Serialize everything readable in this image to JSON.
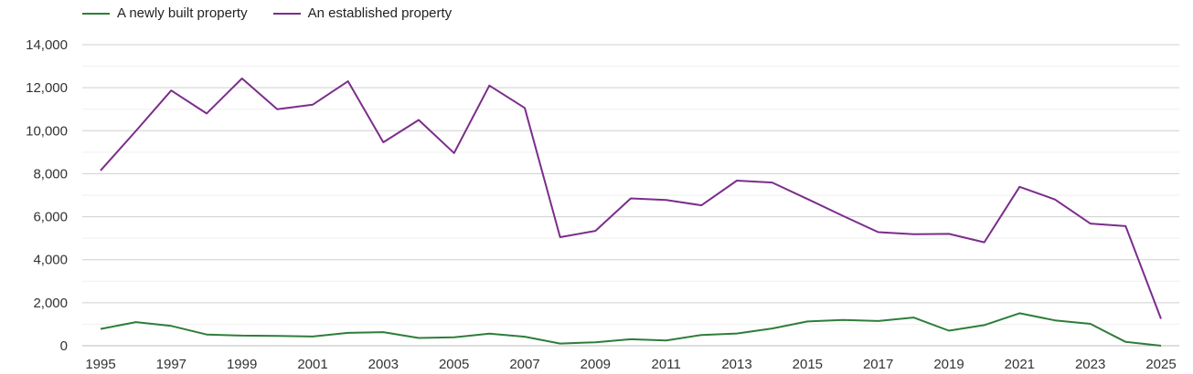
{
  "chart_data": {
    "type": "line",
    "x": [
      1995,
      1996,
      1997,
      1998,
      1999,
      2000,
      2001,
      2002,
      2003,
      2004,
      2005,
      2006,
      2007,
      2008,
      2009,
      2010,
      2011,
      2012,
      2013,
      2014,
      2015,
      2016,
      2017,
      2018,
      2019,
      2020,
      2021,
      2022,
      2023,
      2024,
      2025
    ],
    "x_tick_labels": [
      "1995",
      "1997",
      "1999",
      "2001",
      "2003",
      "2005",
      "2007",
      "2009",
      "2011",
      "2013",
      "2015",
      "2017",
      "2019",
      "2021",
      "2023",
      "2025"
    ],
    "y_tick_labels": [
      "0",
      "2,000",
      "4,000",
      "6,000",
      "8,000",
      "10,000",
      "12,000",
      "14,000"
    ],
    "ylim": [
      0,
      14000
    ],
    "grid": true,
    "legend_position": "top-left",
    "series": [
      {
        "name": "A newly built property",
        "color": "#2e7d3a",
        "values": [
          780,
          1100,
          920,
          520,
          470,
          460,
          430,
          600,
          630,
          360,
          390,
          560,
          420,
          100,
          160,
          300,
          240,
          500,
          570,
          800,
          1130,
          1200,
          1150,
          1310,
          700,
          960,
          1510,
          1180,
          1020,
          180,
          0
        ]
      },
      {
        "name": "An established property",
        "color": "#7b2d8b",
        "values": [
          8150,
          9990,
          11870,
          10800,
          12430,
          11000,
          11210,
          12300,
          9460,
          10500,
          8960,
          12100,
          11060,
          5050,
          5340,
          6850,
          6780,
          6530,
          7680,
          7590,
          6820,
          6040,
          5280,
          5190,
          5200,
          4810,
          7390,
          6800,
          5680,
          5560,
          1250
        ]
      }
    ]
  }
}
